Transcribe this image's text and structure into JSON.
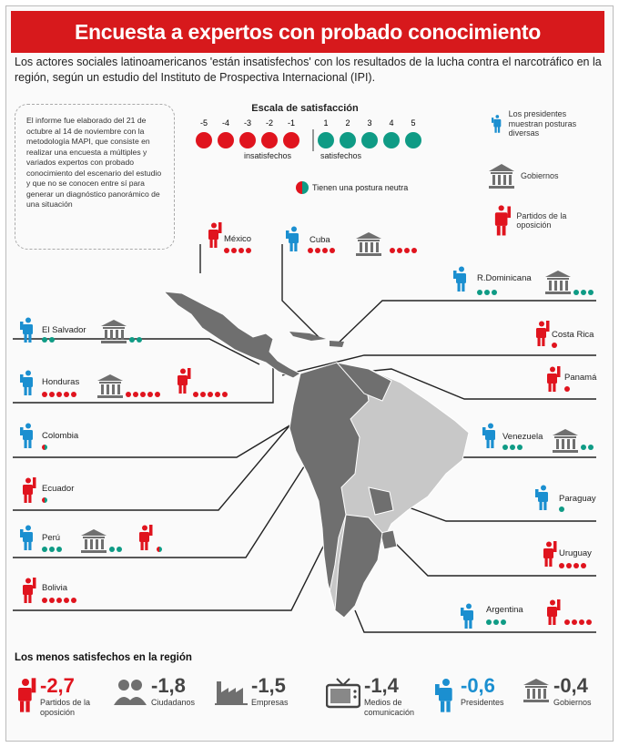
{
  "title": "Encuesta a expertos con probado conocimiento",
  "subtitle": "Los actores sociales latinoamericanos 'están insatisfechos' con los resultados de la lucha contra el narcotráfico en la región, según un estudio del Instituto de Prospectiva Internacional (IPI).",
  "note": "El informe fue elaborado del 21 de octubre al 14 de noviembre con la metodología MAPI, que consiste en realizar una encuesta a múltiples y variados expertos con probado conocimiento del escenario del estudio y que no se conocen entre sí para generar un diagnóstico panorámico de una situación",
  "scale": {
    "title": "Escala de satisfacción",
    "negatives": [
      "-5",
      "-4",
      "-3",
      "-2",
      "-1"
    ],
    "positives": [
      "1",
      "2",
      "3",
      "4",
      "5"
    ],
    "insat_label": "insatisfechos",
    "sat_label": "satisfechos",
    "neutral_label": "Tienen una postura neutra"
  },
  "legend": {
    "presidents": "Los presidentes muestran posturas diversas",
    "governments": "Gobiernos",
    "opposition": "Partidos de la oposición"
  },
  "colors": {
    "red": "#e0141e",
    "green": "#0f9b85",
    "blue": "#1b8fd0",
    "gray": "#6f6f6f",
    "light_gray": "#c8c8c8"
  },
  "countries": {
    "mexico": "México",
    "cuba": "Cuba",
    "rdominicana": "R.Dominicana",
    "elsalvador": "El Salvador",
    "costarica": "Costa Rica",
    "honduras": "Honduras",
    "panama": "Panamá",
    "colombia": "Colombia",
    "venezuela": "Venezuela",
    "ecuador": "Ecuador",
    "paraguay": "Paraguay",
    "peru": "Perú",
    "uruguay": "Uruguay",
    "bolivia": "Bolivia",
    "argentina": "Argentina"
  },
  "ratings": {
    "mexico_opposition": {
      "color": "red",
      "count": 4
    },
    "cuba_presidents": {
      "color": "red",
      "count": 4
    },
    "cuba_governments": {
      "color": "red",
      "count": 4
    },
    "rdominicana_presidents": {
      "color": "green",
      "count": 3
    },
    "rdominicana_governments": {
      "color": "green",
      "count": 3
    },
    "elsalvador_presidents": {
      "color": "green",
      "count": 2
    },
    "elsalvador_governments": {
      "color": "green",
      "count": 2
    },
    "costarica_opposition": {
      "color": "red",
      "count": 1
    },
    "honduras_presidents": {
      "color": "red",
      "count": 5
    },
    "honduras_governments": {
      "color": "red",
      "count": 5
    },
    "honduras_opposition": {
      "color": "red",
      "count": 5
    },
    "panama_opposition": {
      "color": "red",
      "count": 1
    },
    "colombia_presidents": {
      "color": "neutral",
      "count": 1
    },
    "venezuela_presidents": {
      "color": "green",
      "count": 3
    },
    "venezuela_governments": {
      "color": "green",
      "count": 2
    },
    "ecuador_opposition": {
      "color": "neutral",
      "count": 1
    },
    "paraguay_presidents": {
      "color": "green",
      "count": 1
    },
    "peru_presidents": {
      "color": "green",
      "count": 3
    },
    "peru_governments": {
      "color": "green",
      "count": 2
    },
    "peru_opposition": {
      "color": "neutral",
      "count": 1
    },
    "uruguay_opposition": {
      "color": "red",
      "count": 4
    },
    "bolivia_opposition": {
      "color": "red",
      "count": 5
    },
    "argentina_presidents": {
      "color": "green",
      "count": 3
    },
    "argentina_opposition": {
      "color": "red",
      "count": 4
    }
  },
  "bottom": {
    "title": "Los menos satisfechos en la región",
    "items": [
      {
        "value": "-2,7",
        "label": "Partidos de la oposición",
        "color": "#e0141e",
        "icon": "opposition-icon"
      },
      {
        "value": "-1,8",
        "label": "Ciudadanos",
        "color": "#444444",
        "icon": "citizens-icon"
      },
      {
        "value": "-1,5",
        "label": "Empresas",
        "color": "#444444",
        "icon": "factory-icon"
      },
      {
        "value": "-1,4",
        "label": "Medios de comunicación",
        "color": "#444444",
        "icon": "tv-icon"
      },
      {
        "value": "-0,6",
        "label": "Presidentes",
        "color": "#1b8fd0",
        "icon": "president-icon"
      },
      {
        "value": "-0,4",
        "label": "Gobiernos",
        "color": "#444444",
        "icon": "government-icon"
      }
    ]
  }
}
